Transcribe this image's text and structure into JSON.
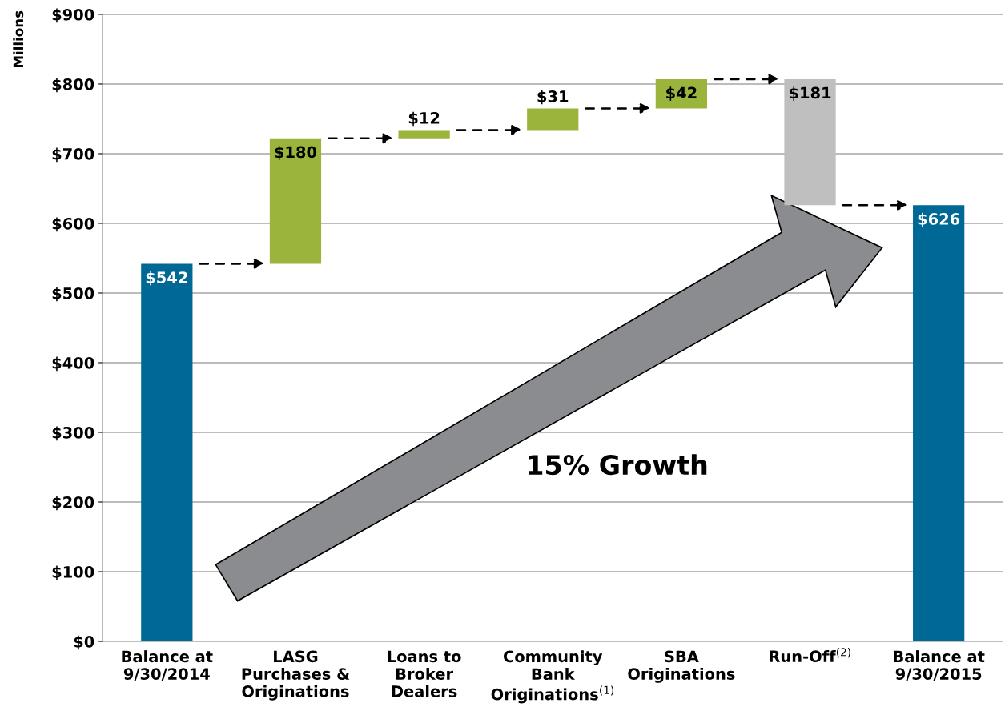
{
  "chart_data": {
    "type": "bar",
    "ylabel": "Millions",
    "categories": [
      "Balance at\n9/30/2014",
      "LASG\nPurchases &\nOriginations",
      "Loans to\nBroker\nDealers",
      "Community\nBank\nOriginations$^{(1)}$",
      "SBA\nOriginations",
      "Run-Off$^{(2)}$",
      "Balance at\n9/30/2015"
    ],
    "values": [
      542,
      180,
      12,
      31,
      42,
      -181,
      626
    ],
    "base": [
      0,
      542,
      722,
      734,
      765,
      807,
      0
    ],
    "colors": [
      "#006894",
      "#9bb53c",
      "#9bb53c",
      "#9bb53c",
      "#9bb53c",
      "#bfbfbf",
      "#006894"
    ],
    "value_labels": [
      "$542",
      "$180",
      "$12",
      "$31",
      "$42",
      "$181",
      "$626"
    ],
    "ylim": [
      0,
      900
    ],
    "yticks": [
      {
        "value": 0,
        "label": "$0"
      },
      {
        "value": 100,
        "label": "$100"
      },
      {
        "value": 200,
        "label": "$200"
      },
      {
        "value": 300,
        "label": "$300"
      },
      {
        "value": 400,
        "label": "$400"
      },
      {
        "value": 500,
        "label": "$500"
      },
      {
        "value": 600,
        "label": "$600"
      },
      {
        "value": 700,
        "label": "$700"
      },
      {
        "value": 800,
        "label": "$800"
      },
      {
        "value": 900,
        "label": "$900"
      }
    ],
    "grid": "y",
    "annotations": [
      "15% Growth"
    ]
  }
}
